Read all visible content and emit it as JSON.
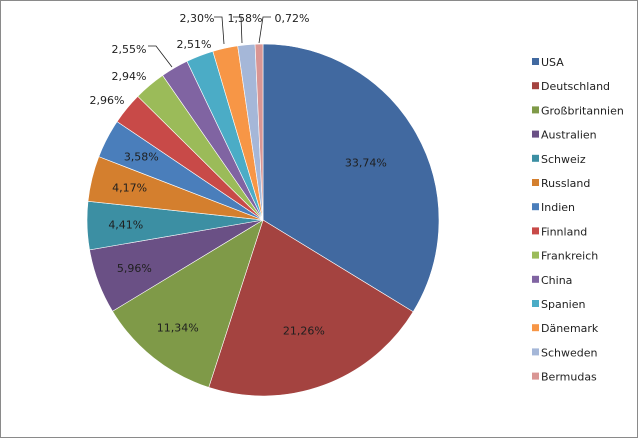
{
  "chart_data": {
    "type": "pie",
    "start_angle_deg": 0,
    "direction": "clockwise",
    "legend_position": "right",
    "slices": [
      {
        "label": "USA",
        "value": 33.74,
        "display": "33,74%",
        "color": "#4169a0",
        "label_mode": "inside"
      },
      {
        "label": "Deutschland",
        "value": 21.26,
        "display": "21,26%",
        "color": "#a44340",
        "label_mode": "inside"
      },
      {
        "label": "Großbritannien",
        "value": 11.34,
        "display": "11,34%",
        "color": "#7f9a48",
        "label_mode": "inside"
      },
      {
        "label": "Australien",
        "value": 5.96,
        "display": "5,96%",
        "color": "#6a5085",
        "label_mode": "inside"
      },
      {
        "label": "Schweiz",
        "value": 4.41,
        "display": "4,41%",
        "color": "#3c8fa3",
        "label_mode": "inside"
      },
      {
        "label": "Russland",
        "value": 4.17,
        "display": "4,17%",
        "color": "#d47f2e",
        "label_mode": "inside"
      },
      {
        "label": "Indien",
        "value": 3.58,
        "display": "3,58%",
        "color": "#4a7ebb",
        "label_mode": "inside"
      },
      {
        "label": "Finnland",
        "value": 2.96,
        "display": "2,96%",
        "color": "#c84a48",
        "label_mode": "outside"
      },
      {
        "label": "Frankreich",
        "value": 2.94,
        "display": "2,94%",
        "color": "#9bbb59",
        "label_mode": "outside"
      },
      {
        "label": "China",
        "value": 2.55,
        "display": "2,55%",
        "color": "#8064a2",
        "label_mode": "leader"
      },
      {
        "label": "Spanien",
        "value": 2.51,
        "display": "2,51%",
        "color": "#4bacc6",
        "label_mode": "outside"
      },
      {
        "label": "Dänemark",
        "value": 2.3,
        "display": "2,30%",
        "color": "#f79646",
        "label_mode": "leader"
      },
      {
        "label": "Schweden",
        "value": 1.58,
        "display": "1,58%",
        "color": "#a5b7d8",
        "label_mode": "leader"
      },
      {
        "label": "Bermudas",
        "value": 0.72,
        "display": "0,72%",
        "color": "#d99694",
        "label_mode": "leader"
      }
    ]
  }
}
